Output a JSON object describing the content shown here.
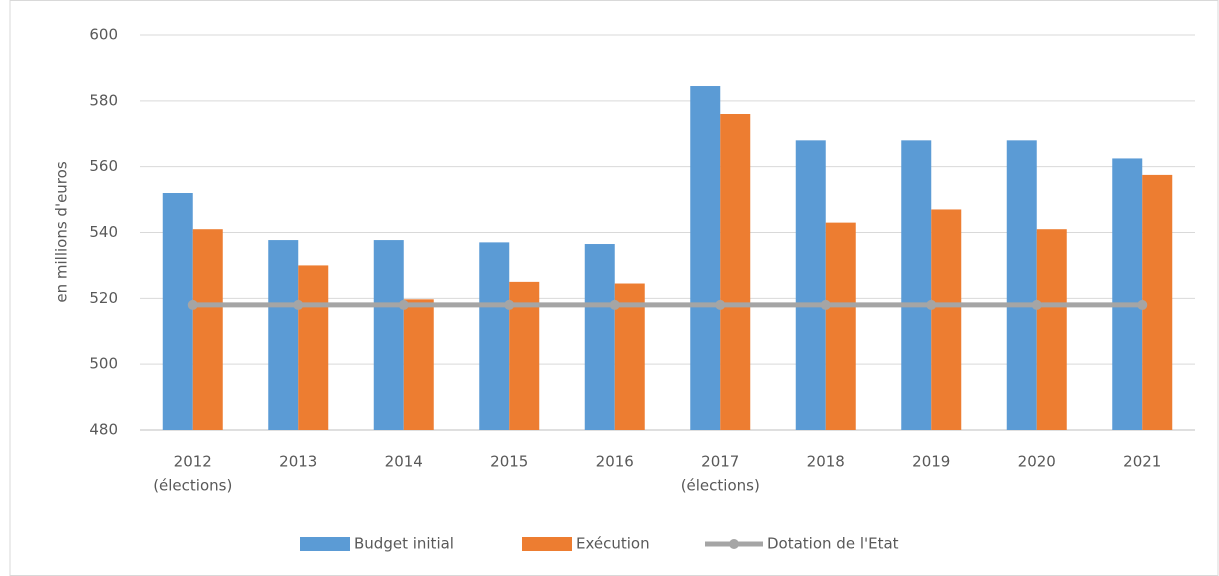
{
  "chart_data": {
    "type": "bar",
    "y_label": "en millions d'euros",
    "categories": [
      [
        "2012",
        "(élections)"
      ],
      [
        "2013"
      ],
      [
        "2014"
      ],
      [
        "2015"
      ],
      [
        "2016"
      ],
      [
        "2017",
        "(élections)"
      ],
      [
        "2018"
      ],
      [
        "2019"
      ],
      [
        "2020"
      ],
      [
        "2021"
      ]
    ],
    "series": [
      {
        "name": "Budget initial",
        "color": "#5b9bd5",
        "kind": "bar",
        "values": [
          552,
          537.7,
          537.7,
          537,
          536.5,
          584.5,
          568,
          568,
          568,
          562.5
        ]
      },
      {
        "name": "Exécution",
        "color": "#ed7d31",
        "kind": "bar",
        "values": [
          541,
          530,
          519.7,
          525,
          524.5,
          576,
          543,
          547,
          541,
          557.5
        ]
      },
      {
        "name": "Dotation de l'Etat",
        "color": "#a5a5a5",
        "kind": "line",
        "values": [
          518,
          518,
          518,
          518,
          518,
          518,
          518,
          518,
          518,
          518
        ]
      }
    ],
    "ylim": [
      480,
      600
    ],
    "yticks": [
      480,
      500,
      520,
      540,
      560,
      580,
      600
    ],
    "grid": true,
    "legend": "bottom"
  }
}
